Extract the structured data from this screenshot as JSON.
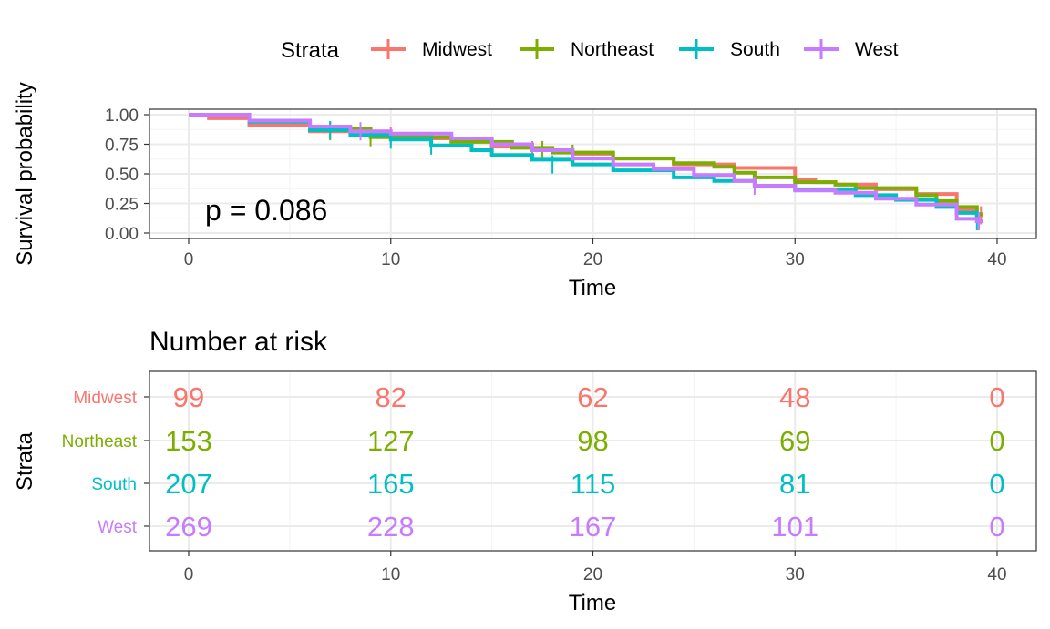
{
  "colors": {
    "Midwest": "#F8766D",
    "Northeast": "#7CAE00",
    "South": "#00BFC4",
    "West": "#C77CFF",
    "axis_text": "#4d4d4d",
    "grid_major": "#ebebeb",
    "grid_minor": "#f3f3f3",
    "panel_border": "#333333"
  },
  "legend": {
    "title": "Strata",
    "entries": [
      "Midwest",
      "Northeast",
      "South",
      "West"
    ]
  },
  "chart_data": [
    {
      "type": "line",
      "subtype": "kaplan-meier-step",
      "ylabel": "Survival probability",
      "xlabel": "Time",
      "xlim": [
        0,
        40
      ],
      "ylim": [
        0,
        1
      ],
      "xticks": [
        0,
        10,
        20,
        30,
        40
      ],
      "yticks": [
        "0.00",
        "0.25",
        "0.50",
        "0.75",
        "1.00"
      ],
      "grid": true,
      "legend_position": "top",
      "annotation": "p = 0.086",
      "series": [
        {
          "name": "Midwest",
          "points": [
            [
              0,
              1.0
            ],
            [
              1,
              0.97
            ],
            [
              3,
              0.91
            ],
            [
              6,
              0.86
            ],
            [
              9,
              0.83
            ],
            [
              10,
              0.82
            ],
            [
              12,
              0.8
            ],
            [
              14,
              0.78
            ],
            [
              15,
              0.73
            ],
            [
              17,
              0.7
            ],
            [
              19,
              0.67
            ],
            [
              21,
              0.63
            ],
            [
              24,
              0.58
            ],
            [
              27,
              0.55
            ],
            [
              30,
              0.45
            ],
            [
              31,
              0.43
            ],
            [
              32,
              0.41
            ],
            [
              34,
              0.37
            ],
            [
              36,
              0.33
            ],
            [
              38,
              0.2
            ],
            [
              39,
              0.15
            ],
            [
              39.3,
              0.15
            ]
          ],
          "censored": [
            [
              10,
              0.82
            ],
            [
              17,
              0.7
            ],
            [
              19,
              0.67
            ],
            [
              39.2,
              0.15
            ]
          ]
        },
        {
          "name": "Northeast",
          "points": [
            [
              0,
              1.0
            ],
            [
              3,
              0.94
            ],
            [
              6,
              0.88
            ],
            [
              9,
              0.81
            ],
            [
              10,
              0.81
            ],
            [
              13,
              0.77
            ],
            [
              16,
              0.72
            ],
            [
              18,
              0.68
            ],
            [
              21,
              0.63
            ],
            [
              24,
              0.59
            ],
            [
              26,
              0.56
            ],
            [
              27,
              0.51
            ],
            [
              28,
              0.47
            ],
            [
              30,
              0.43
            ],
            [
              32,
              0.41
            ],
            [
              33,
              0.38
            ],
            [
              36,
              0.32
            ],
            [
              37,
              0.27
            ],
            [
              38,
              0.22
            ],
            [
              39,
              0.16
            ],
            [
              39.3,
              0.16
            ]
          ],
          "censored": [
            [
              7,
              0.86
            ],
            [
              9,
              0.81
            ],
            [
              17.5,
              0.7
            ],
            [
              19,
              0.67
            ]
          ]
        },
        {
          "name": "South",
          "points": [
            [
              0,
              1.0
            ],
            [
              3,
              0.94
            ],
            [
              6,
              0.87
            ],
            [
              8,
              0.83
            ],
            [
              10,
              0.79
            ],
            [
              12,
              0.74
            ],
            [
              14,
              0.7
            ],
            [
              15,
              0.66
            ],
            [
              17,
              0.62
            ],
            [
              19,
              0.58
            ],
            [
              21,
              0.53
            ],
            [
              24,
              0.47
            ],
            [
              26,
              0.44
            ],
            [
              28,
              0.4
            ],
            [
              30,
              0.37
            ],
            [
              33,
              0.32
            ],
            [
              35,
              0.28
            ],
            [
              37,
              0.22
            ],
            [
              38,
              0.17
            ],
            [
              39,
              0.1
            ],
            [
              39.3,
              0.1
            ]
          ],
          "censored": [
            [
              7,
              0.87
            ],
            [
              10,
              0.79
            ],
            [
              12,
              0.74
            ],
            [
              18,
              0.58
            ],
            [
              39,
              0.1
            ]
          ]
        },
        {
          "name": "West",
          "points": [
            [
              0,
              1.0
            ],
            [
              3,
              0.95
            ],
            [
              6,
              0.9
            ],
            [
              8,
              0.86
            ],
            [
              10,
              0.84
            ],
            [
              13,
              0.8
            ],
            [
              15,
              0.75
            ],
            [
              17,
              0.7
            ],
            [
              19,
              0.63
            ],
            [
              21,
              0.58
            ],
            [
              23,
              0.54
            ],
            [
              25,
              0.49
            ],
            [
              27,
              0.44
            ],
            [
              28,
              0.4
            ],
            [
              30,
              0.36
            ],
            [
              32,
              0.34
            ],
            [
              34,
              0.29
            ],
            [
              36,
              0.24
            ],
            [
              38,
              0.12
            ],
            [
              39,
              0.1
            ],
            [
              39.3,
              0.1
            ]
          ],
          "censored": [
            [
              8.5,
              0.86
            ],
            [
              28,
              0.4
            ],
            [
              39.1,
              0.1
            ]
          ]
        }
      ]
    },
    {
      "type": "table",
      "title": "Number at risk",
      "ylabel": "Strata",
      "xlabel": "Time",
      "xlim": [
        0,
        40
      ],
      "xticks": [
        0,
        10,
        20,
        30,
        40
      ],
      "times": [
        0,
        10,
        20,
        30,
        40
      ],
      "rows": [
        {
          "name": "Midwest",
          "values": [
            99,
            82,
            62,
            48,
            0
          ]
        },
        {
          "name": "Northeast",
          "values": [
            153,
            127,
            98,
            69,
            0
          ]
        },
        {
          "name": "South",
          "values": [
            207,
            165,
            115,
            81,
            0
          ]
        },
        {
          "name": "West",
          "values": [
            269,
            228,
            167,
            101,
            0
          ]
        }
      ]
    }
  ]
}
